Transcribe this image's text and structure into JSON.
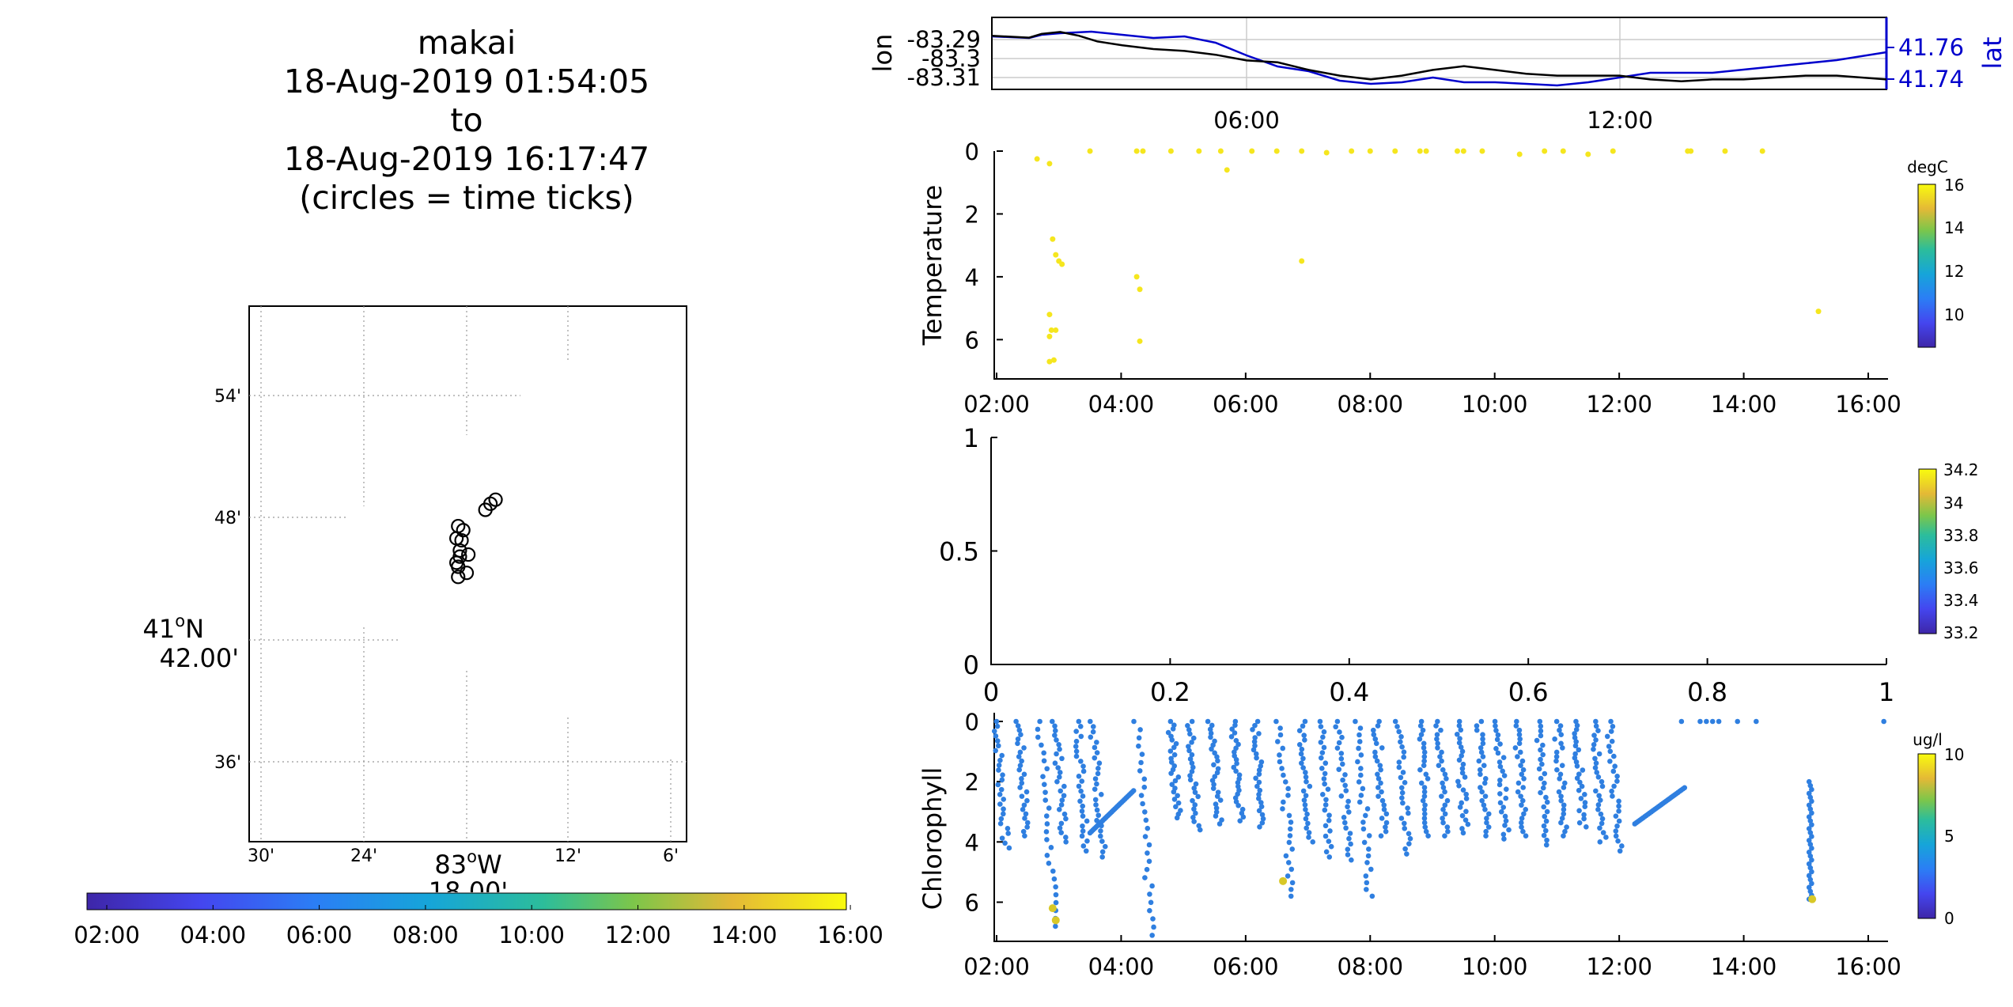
{
  "title": {
    "lines": [
      "makai",
      "18-Aug-2019 01:54:05",
      "to",
      "18-Aug-2019 16:17:47",
      "(circles = time ticks)"
    ]
  },
  "map": {
    "lat_ticks": [
      "54'",
      "48'",
      "36'"
    ],
    "lat_center_label_1": "41",
    "lat_center_label_deg": "o",
    "lat_center_label_2": "N",
    "lat_center_label_3": "42.00'",
    "lon_ticks": [
      "30'",
      "24'",
      "12'",
      "6'"
    ],
    "lon_center_label_1": "83",
    "lon_center_label_deg": "o",
    "lon_center_label_2": "W",
    "lon_center_label_3": "18.00'",
    "colorbar_ticks": [
      "02:00",
      "04:00",
      "06:00",
      "08:00",
      "10:00",
      "12:00",
      "14:00",
      "16:00"
    ]
  },
  "colors": {
    "lon_line": "#000000",
    "lat_line": "#0000cc",
    "temperature_points": "#f5e61e",
    "chlorophyll_points": "#2f7fe0",
    "chlorophyll_high": "#d8c828"
  },
  "chart_data": [
    {
      "id": "map",
      "type": "scatter",
      "description_units": "minutes offset relative to 41°42'N, 83°18'W",
      "x_lon_min": [
        -0.6,
        -0.5,
        -0.4,
        -0.3,
        -0.5,
        0.1,
        0.0,
        -0.2,
        -0.6,
        -0.4,
        -0.5,
        1.1,
        1.4,
        1.7
      ],
      "y_lat_min": [
        5.0,
        5.6,
        4.4,
        4.9,
        3.6,
        4.2,
        3.3,
        5.4,
        3.8,
        4.1,
        3.1,
        6.4,
        6.7,
        6.9
      ],
      "xticks": [
        "30'",
        "24'",
        "12'",
        "6'"
      ],
      "yticks": [
        "54'",
        "48'",
        "36'"
      ]
    },
    {
      "id": "lon-lat",
      "type": "line",
      "x_ticks": [
        "06:00",
        "12:00"
      ],
      "left_axis": {
        "label": "lon",
        "ticks": [
          "-83.29",
          "-83.3",
          "-83.31"
        ]
      },
      "right_axis": {
        "label": "lat",
        "ticks": [
          "41.76",
          "41.74"
        ]
      },
      "series": [
        {
          "name": "lon",
          "x_hours": [
            1.9,
            2.5,
            2.7,
            3.0,
            3.3,
            3.6,
            4.0,
            4.5,
            5.0,
            5.5,
            6.0,
            6.5,
            7.0,
            7.5,
            8.0,
            8.5,
            9.0,
            9.5,
            10.0,
            10.5,
            11.0,
            11.5,
            12.0,
            12.5,
            13.0,
            13.5,
            14.0,
            14.5,
            15.0,
            15.5,
            16.3
          ],
          "y": [
            -83.288,
            -83.289,
            -83.287,
            -83.286,
            -83.288,
            -83.291,
            -83.293,
            -83.295,
            -83.296,
            -83.298,
            -83.301,
            -83.302,
            -83.306,
            -83.309,
            -83.311,
            -83.309,
            -83.306,
            -83.304,
            -83.306,
            -83.308,
            -83.309,
            -83.309,
            -83.309,
            -83.311,
            -83.312,
            -83.311,
            -83.311,
            -83.31,
            -83.309,
            -83.309,
            -83.311
          ]
        },
        {
          "name": "lat",
          "x_hours": [
            1.9,
            2.5,
            2.7,
            3.0,
            3.5,
            4.0,
            4.5,
            5.0,
            5.5,
            6.0,
            6.5,
            7.0,
            7.5,
            8.0,
            8.5,
            9.0,
            9.5,
            10.0,
            10.5,
            11.0,
            11.5,
            12.0,
            12.5,
            13.0,
            13.5,
            14.0,
            14.5,
            15.0,
            15.5,
            16.3
          ],
          "y": [
            41.767,
            41.766,
            41.768,
            41.769,
            41.77,
            41.768,
            41.766,
            41.767,
            41.763,
            41.755,
            41.748,
            41.745,
            41.739,
            41.737,
            41.738,
            41.741,
            41.738,
            41.738,
            41.737,
            41.736,
            41.738,
            41.741,
            41.744,
            41.744,
            41.744,
            41.746,
            41.748,
            41.75,
            41.752,
            41.757
          ]
        }
      ]
    },
    {
      "id": "temperature",
      "type": "scatter",
      "ylabel": "Temperature",
      "x_ticks": [
        "02:00",
        "04:00",
        "06:00",
        "08:00",
        "10:00",
        "12:00",
        "14:00",
        "16:00"
      ],
      "y_ticks": [
        "0",
        "2",
        "4",
        "6"
      ],
      "colorbar": {
        "label": "degC",
        "ticks": [
          "16",
          "14",
          "12",
          "10"
        ]
      },
      "x_hours": [
        2.65,
        2.85,
        2.9,
        2.85,
        2.95,
        3.0,
        3.05,
        2.85,
        2.88,
        2.95,
        2.85,
        2.92,
        3.5,
        4.25,
        4.3,
        4.3,
        4.25,
        4.35,
        4.8,
        5.25,
        5.7,
        5.6,
        6.1,
        6.5,
        6.9,
        6.9,
        7.3,
        7.7,
        8.0,
        8.4,
        8.8,
        8.9,
        9.4,
        9.5,
        9.8,
        10.4,
        10.8,
        11.1,
        11.5,
        11.9,
        13.1,
        13.15,
        13.7,
        14.3,
        15.2
      ],
      "y_depth": [
        0.25,
        0.4,
        2.8,
        5.2,
        3.3,
        3.5,
        3.6,
        5.9,
        5.7,
        5.7,
        6.7,
        6.65,
        0.0,
        4.0,
        4.4,
        6.05,
        0.0,
        0.0,
        0.0,
        0.0,
        0.6,
        0.0,
        0.0,
        0.0,
        0.0,
        3.5,
        0.05,
        0.0,
        0.0,
        0.0,
        0.0,
        0.0,
        0.0,
        0.0,
        0.0,
        0.1,
        0.0,
        0.0,
        0.1,
        0.0,
        0.0,
        0.0,
        0.0,
        0.0,
        5.1
      ]
    },
    {
      "id": "empty-panel",
      "type": "line",
      "x_ticks": [
        "0",
        "0.2",
        "0.4",
        "0.6",
        "0.8",
        "1"
      ],
      "y_ticks": [
        "1",
        "0.5",
        "0"
      ],
      "colorbar": {
        "label": "",
        "ticks": [
          "34.2",
          "34",
          "33.8",
          "33.6",
          "33.4",
          "33.2"
        ]
      }
    },
    {
      "id": "chlorophyll",
      "type": "scatter",
      "ylabel": "Chlorophyll",
      "x_ticks": [
        "02:00",
        "04:00",
        "06:00",
        "08:00",
        "10:00",
        "12:00",
        "14:00",
        "16:00"
      ],
      "y_ticks": [
        "0",
        "2",
        "4",
        "6"
      ],
      "colorbar": {
        "label": "ug/l",
        "ticks": [
          "10",
          "5",
          "0"
        ]
      },
      "profile_starts_hours": [
        2.0,
        2.35,
        2.7,
        2.95,
        3.3,
        3.55,
        4.25,
        4.8,
        5.1,
        5.45,
        5.8,
        6.15,
        6.55,
        6.9,
        7.2,
        7.5,
        7.8,
        8.1,
        8.45,
        8.8,
        9.1,
        9.4,
        9.75,
        10.05,
        10.35,
        10.7,
        11.0,
        11.3,
        11.6,
        11.85
      ],
      "profile_max_depth": [
        4.2,
        3.8,
        6.8,
        4.0,
        4.3,
        4.5,
        7.1,
        3.2,
        3.6,
        3.4,
        3.3,
        3.5,
        5.8,
        4.0,
        4.5,
        4.6,
        5.8,
        3.8,
        4.4,
        3.8,
        3.8,
        3.7,
        3.8,
        3.9,
        3.8,
        4.1,
        3.8,
        3.5,
        4.0,
        4.3
      ],
      "ramp_segments": [
        {
          "x_hours": [
            3.5,
            4.2
          ],
          "y_depth": [
            3.7,
            2.3
          ]
        },
        {
          "x_hours": [
            12.25,
            13.05
          ],
          "y_depth": [
            3.4,
            2.2
          ]
        }
      ],
      "surface_points_hours": [
        13.0,
        13.3,
        13.4,
        13.5,
        13.6,
        13.9,
        14.2,
        16.25
      ],
      "high_values": [
        {
          "x_hours": 2.9,
          "y_depth": 6.2,
          "value": 8.5
        },
        {
          "x_hours": 2.95,
          "y_depth": 6.6,
          "value": 9.0
        },
        {
          "x_hours": 6.6,
          "y_depth": 5.3,
          "value": 7.0
        },
        {
          "x_hours": 15.1,
          "y_depth": 5.9,
          "value": 7.5
        }
      ]
    }
  ]
}
